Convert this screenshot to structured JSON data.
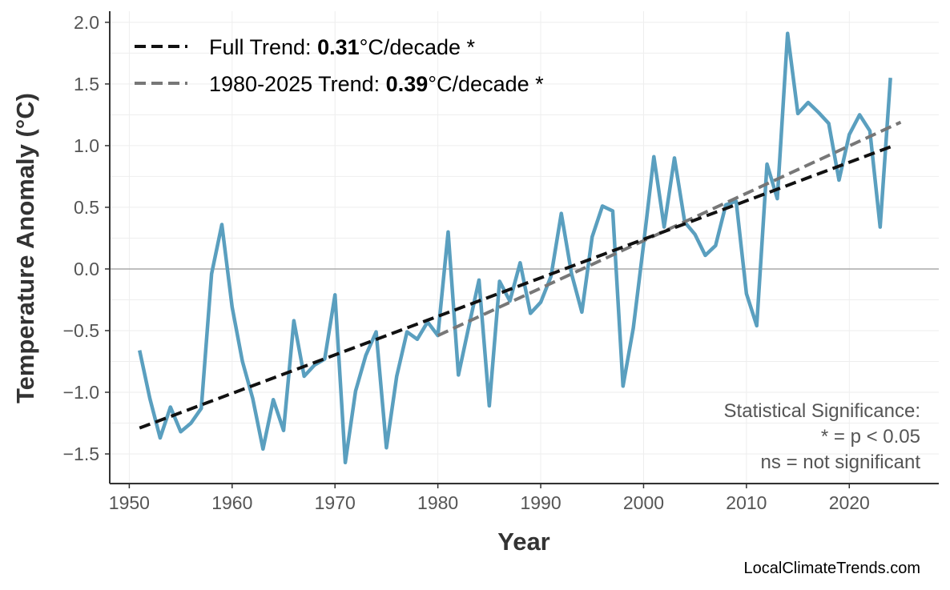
{
  "chart_data": {
    "type": "line",
    "xlabel": "Year",
    "ylabel": "Temperature Anomaly (°C)",
    "xlim": [
      1948.1,
      2028.7
    ],
    "ylim": [
      -1.74,
      2.09
    ],
    "xticks": [
      1950,
      1960,
      1970,
      1980,
      1990,
      2000,
      2010,
      2020
    ],
    "yticks": [
      -1.5,
      -1.0,
      -0.5,
      0.0,
      0.5,
      1.0,
      1.5,
      2.0
    ],
    "ytick_labels": [
      "−1.5",
      "−1.0",
      "−0.5",
      "0.0",
      "0.5",
      "1.0",
      "1.5",
      "2.0"
    ],
    "grid": true,
    "zero_line": true,
    "legend_position": "top-left",
    "series": [
      {
        "color": "#5a9fbf",
        "x": [
          1951,
          1952,
          1953,
          1954,
          1955,
          1956,
          1957,
          1958,
          1959,
          1960,
          1961,
          1962,
          1963,
          1964,
          1965,
          1966,
          1967,
          1968,
          1969,
          1970,
          1971,
          1972,
          1973,
          1974,
          1975,
          1976,
          1977,
          1978,
          1979,
          1980,
          1981,
          1982,
          1983,
          1984,
          1985,
          1986,
          1987,
          1988,
          1989,
          1990,
          1991,
          1992,
          1993,
          1994,
          1995,
          1996,
          1997,
          1998,
          1999,
          2000,
          2001,
          2002,
          2003,
          2004,
          2005,
          2006,
          2007,
          2008,
          2009,
          2010,
          2011,
          2012,
          2013,
          2014,
          2015,
          2016,
          2017,
          2018,
          2019,
          2020,
          2021,
          2022,
          2023,
          2024
        ],
        "y": [
          -0.66,
          -1.05,
          -1.37,
          -1.12,
          -1.32,
          -1.25,
          -1.13,
          -0.04,
          0.36,
          -0.31,
          -0.75,
          -1.05,
          -1.46,
          -1.06,
          -1.31,
          -0.42,
          -0.87,
          -0.78,
          -0.73,
          -0.21,
          -1.57,
          -0.99,
          -0.7,
          -0.51,
          -1.45,
          -0.87,
          -0.51,
          -0.57,
          -0.43,
          -0.54,
          0.3,
          -0.86,
          -0.47,
          -0.09,
          -1.11,
          -0.1,
          -0.26,
          0.05,
          -0.36,
          -0.27,
          -0.06,
          0.45,
          -0.04,
          -0.35,
          0.26,
          0.51,
          0.47,
          -0.95,
          -0.48,
          0.2,
          0.91,
          0.34,
          0.9,
          0.38,
          0.28,
          0.11,
          0.19,
          0.52,
          0.55,
          -0.2,
          -0.46,
          0.85,
          0.57,
          1.91,
          1.26,
          1.35,
          1.27,
          1.18,
          0.72,
          1.09,
          1.25,
          1.12,
          0.34,
          1.55
        ]
      }
    ],
    "trends": [
      {
        "label_prefix": "Full Trend: ",
        "value": "0.31",
        "label_suffix": "°C/decade *",
        "color": "#111111",
        "x": [
          1951,
          2024
        ],
        "y": [
          -1.29,
          0.99
        ]
      },
      {
        "label_prefix": "1980-2025 Trend: ",
        "value": "0.39",
        "label_suffix": "°C/decade *",
        "color": "#777777",
        "x": [
          1980,
          2025
        ],
        "y": [
          -0.54,
          1.19
        ]
      }
    ],
    "annotation": [
      "Statistical Significance:",
      "* = p < 0.05",
      "ns = not significant"
    ],
    "credit": "LocalClimateTrends.com"
  }
}
